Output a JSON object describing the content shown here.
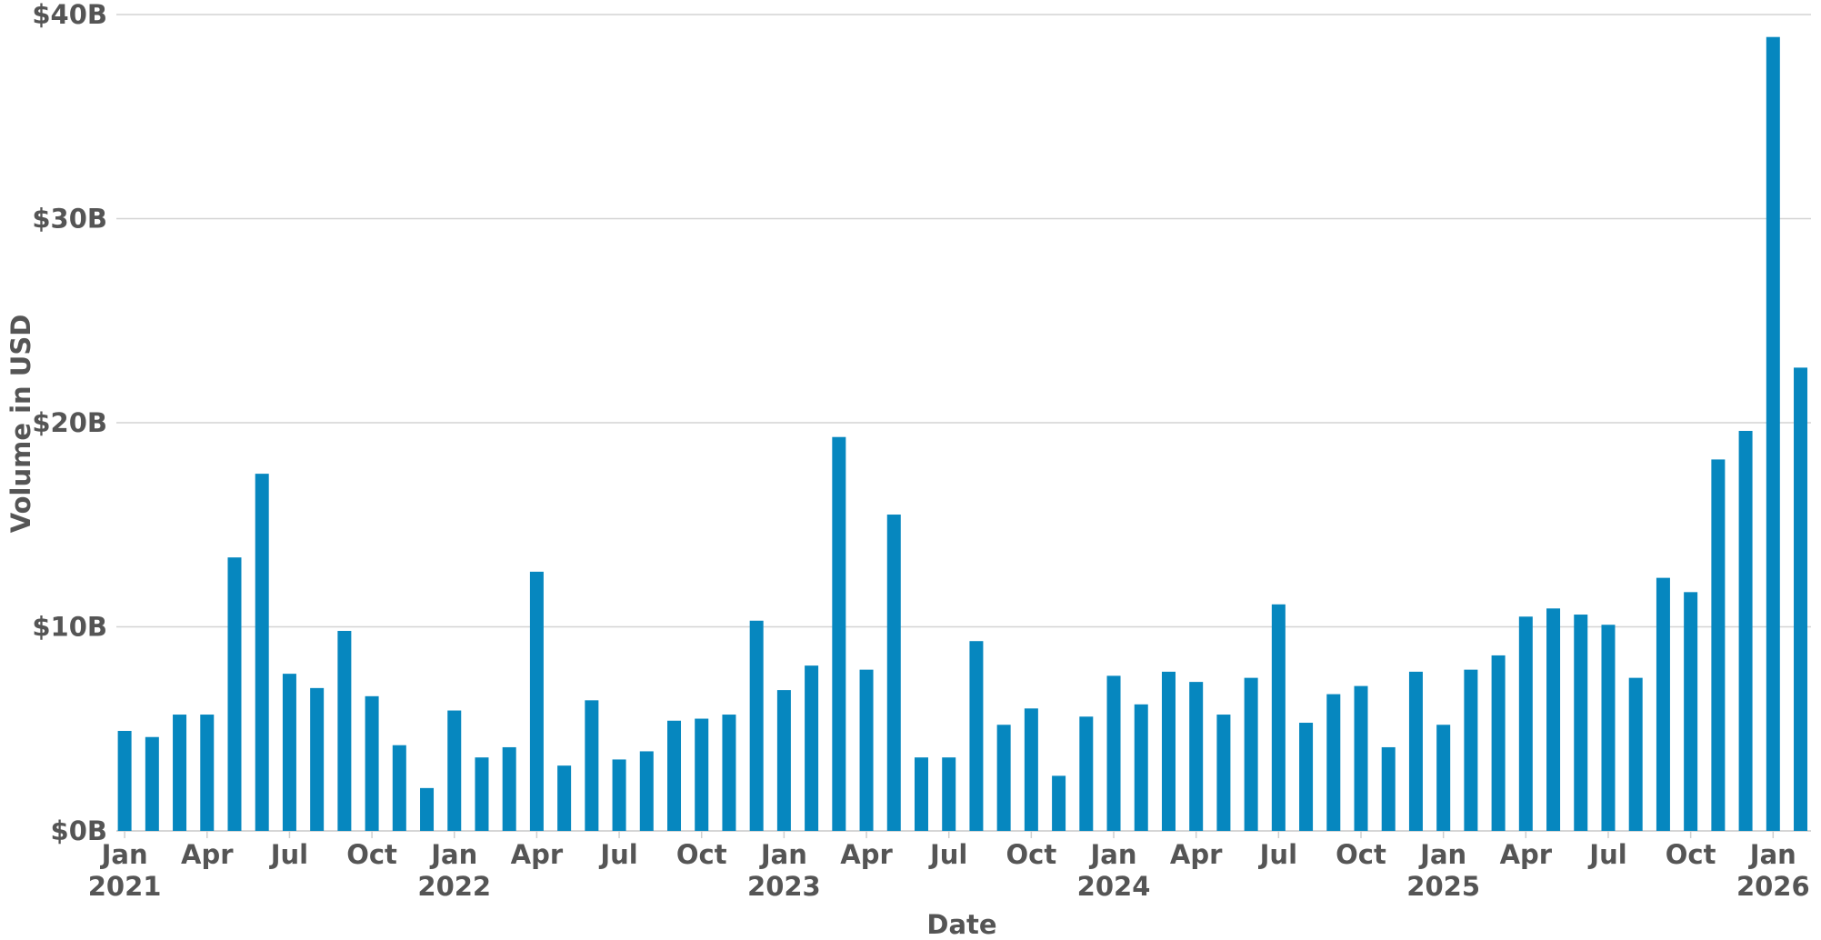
{
  "chart_data": {
    "type": "bar",
    "xlabel": "Date",
    "ylabel": "Volume in USD",
    "ylim": [
      0,
      40
    ],
    "y_unit": "billion USD",
    "y_ticks": [
      {
        "value": 0,
        "label": "$0B"
      },
      {
        "value": 10,
        "label": "$10B"
      },
      {
        "value": 20,
        "label": "$20B"
      },
      {
        "value": 30,
        "label": "$30B"
      },
      {
        "value": 40,
        "label": "$40B"
      }
    ],
    "x_ticks": [
      {
        "date": "2021-01",
        "month": "Jan",
        "year": "2021"
      },
      {
        "date": "2021-04",
        "month": "Apr",
        "year": ""
      },
      {
        "date": "2021-07",
        "month": "Jul",
        "year": ""
      },
      {
        "date": "2021-10",
        "month": "Oct",
        "year": ""
      },
      {
        "date": "2022-01",
        "month": "Jan",
        "year": "2022"
      },
      {
        "date": "2022-04",
        "month": "Apr",
        "year": ""
      },
      {
        "date": "2022-07",
        "month": "Jul",
        "year": ""
      },
      {
        "date": "2022-10",
        "month": "Oct",
        "year": ""
      },
      {
        "date": "2023-01",
        "month": "Jan",
        "year": "2023"
      },
      {
        "date": "2023-04",
        "month": "Apr",
        "year": ""
      },
      {
        "date": "2023-07",
        "month": "Jul",
        "year": ""
      },
      {
        "date": "2023-10",
        "month": "Oct",
        "year": ""
      },
      {
        "date": "2024-01",
        "month": "Jan",
        "year": "2024"
      },
      {
        "date": "2024-04",
        "month": "Apr",
        "year": ""
      },
      {
        "date": "2024-07",
        "month": "Jul",
        "year": ""
      },
      {
        "date": "2024-10",
        "month": "Oct",
        "year": ""
      },
      {
        "date": "2025-01",
        "month": "Jan",
        "year": "2025"
      },
      {
        "date": "2025-04",
        "month": "Apr",
        "year": ""
      },
      {
        "date": "2025-07",
        "month": "Jul",
        "year": ""
      },
      {
        "date": "2025-10",
        "month": "Oct",
        "year": ""
      },
      {
        "date": "2026-01",
        "month": "Jan",
        "year": "2026"
      }
    ],
    "x": [
      "2021-01",
      "2021-02",
      "2021-03",
      "2021-04",
      "2021-05",
      "2021-06",
      "2021-07",
      "2021-08",
      "2021-09",
      "2021-10",
      "2021-11",
      "2021-12",
      "2022-01",
      "2022-02",
      "2022-03",
      "2022-04",
      "2022-05",
      "2022-06",
      "2022-07",
      "2022-08",
      "2022-09",
      "2022-10",
      "2022-11",
      "2022-12",
      "2023-01",
      "2023-02",
      "2023-03",
      "2023-04",
      "2023-05",
      "2023-06",
      "2023-07",
      "2023-08",
      "2023-09",
      "2023-10",
      "2023-11",
      "2023-12",
      "2024-01",
      "2024-02",
      "2024-03",
      "2024-04",
      "2024-05",
      "2024-06",
      "2024-07",
      "2024-08",
      "2024-09",
      "2024-10",
      "2024-11",
      "2024-12",
      "2025-01",
      "2025-02",
      "2025-03",
      "2025-04",
      "2025-05",
      "2025-06",
      "2025-07",
      "2025-08",
      "2025-09",
      "2025-10",
      "2025-11",
      "2025-12",
      "2026-01",
      "2026-02"
    ],
    "values": [
      4.9,
      4.6,
      5.7,
      5.7,
      13.4,
      17.5,
      7.7,
      7.0,
      9.8,
      6.6,
      4.2,
      2.1,
      5.9,
      3.6,
      4.1,
      12.7,
      3.2,
      6.4,
      3.5,
      3.9,
      5.4,
      5.5,
      5.7,
      10.3,
      6.9,
      8.1,
      19.3,
      7.9,
      15.5,
      3.6,
      3.6,
      9.3,
      5.2,
      6.0,
      2.7,
      5.6,
      7.6,
      6.2,
      7.8,
      7.3,
      5.7,
      7.5,
      11.1,
      5.3,
      6.7,
      7.1,
      4.1,
      7.8,
      5.2,
      7.9,
      8.6,
      10.5,
      10.9,
      10.6,
      10.1,
      7.5,
      12.4,
      11.7,
      18.2,
      19.6,
      38.9,
      22.7
    ],
    "bar_color": "#0687BF",
    "grid": true,
    "grid_color": "#D4D4D4",
    "legend": "none"
  }
}
